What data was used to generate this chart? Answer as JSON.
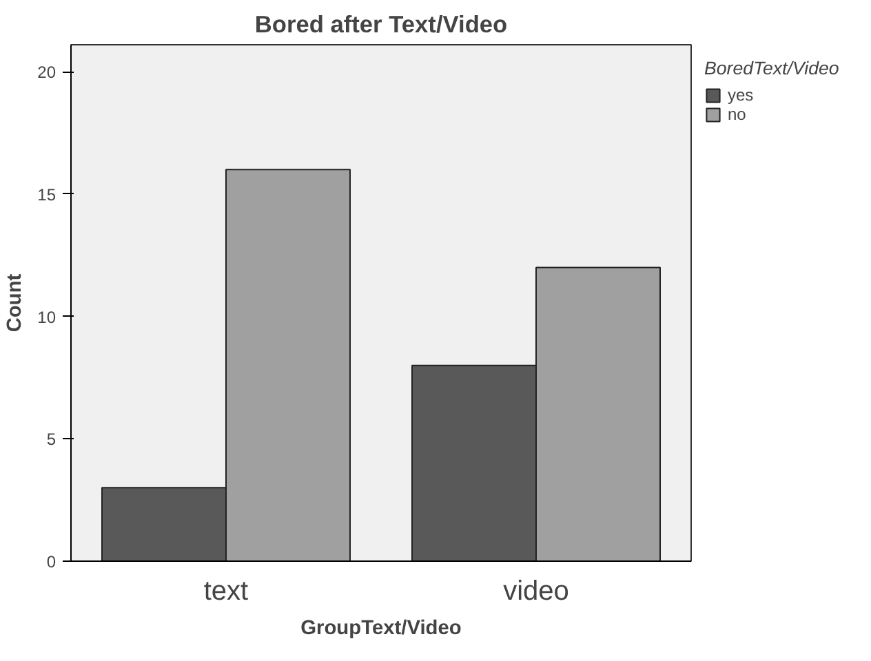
{
  "chart_data": {
    "type": "bar",
    "title": "Bored after Text/Video",
    "xlabel": "GroupText/Video",
    "ylabel": "Count",
    "legend_title": "BoredText/Video",
    "categories": [
      "text",
      "video"
    ],
    "series": [
      {
        "name": "yes",
        "color": "#595959",
        "values": [
          3,
          8
        ]
      },
      {
        "name": "no",
        "color": "#a0a0a0",
        "values": [
          16,
          12
        ]
      }
    ],
    "ylim": [
      0,
      21.1
    ],
    "yticks": [
      0,
      5,
      10,
      15,
      20
    ],
    "grid": false,
    "legend": "top right"
  }
}
